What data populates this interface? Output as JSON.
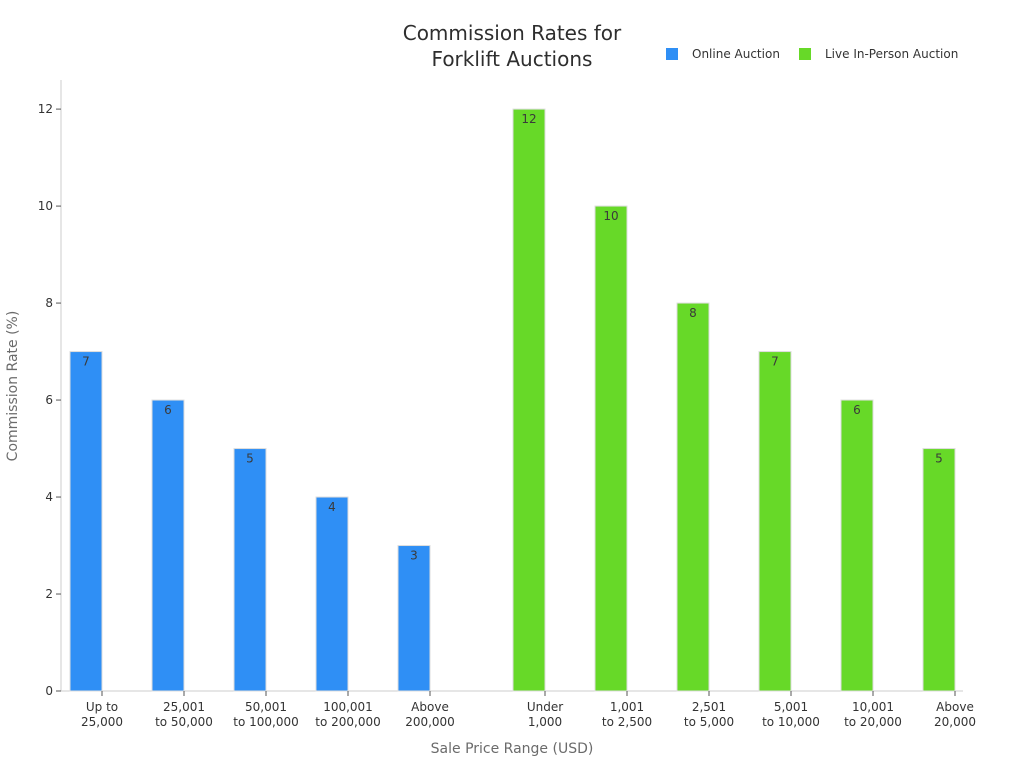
{
  "chart_data": {
    "type": "bar",
    "title_lines": [
      "Commission Rates for",
      "Forklift Auctions"
    ],
    "xlabel": "Sale Price Range (USD)",
    "ylabel": "Commission Rate (%)",
    "ylim": [
      0,
      12.6
    ],
    "yticks": [
      0,
      2,
      4,
      6,
      8,
      10,
      12
    ],
    "legend_position": "top-right",
    "grid": false,
    "series": [
      {
        "name": "Online Auction",
        "color": "#2f8ff5",
        "categories": [
          [
            "Up to",
            "25,000"
          ],
          [
            "25,001",
            "to 50,000"
          ],
          [
            "50,001",
            "to 100,000"
          ],
          [
            "100,001",
            "to 200,000"
          ],
          [
            "Above",
            "200,000"
          ]
        ],
        "values": [
          7,
          6,
          5,
          4,
          3
        ]
      },
      {
        "name": "Live In-Person Auction",
        "color": "#67d928",
        "categories": [
          [
            "Under",
            "1,000"
          ],
          [
            "1,001",
            "to 2,500"
          ],
          [
            "2,501",
            "to 5,000"
          ],
          [
            "5,001",
            "to 10,000"
          ],
          [
            "10,001",
            "to 20,000"
          ],
          [
            "Above",
            "20,000"
          ]
        ],
        "values": [
          12,
          10,
          8,
          7,
          6,
          5
        ]
      }
    ]
  }
}
